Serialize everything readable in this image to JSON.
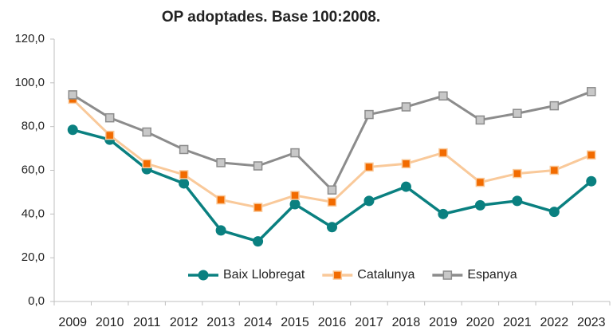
{
  "chart_data": {
    "type": "line",
    "title": "OP adoptades. Base 100:2008.",
    "categories": [
      "2009",
      "2010",
      "2011",
      "2012",
      "2013",
      "2014",
      "2015",
      "2016",
      "2017",
      "2018",
      "2019",
      "2020",
      "2021",
      "2022",
      "2023"
    ],
    "series": [
      {
        "name": "Baix Llobregat",
        "color": "#0a8080",
        "marker_color": "#0a8080",
        "marker": "circle",
        "values": [
          78.5,
          74,
          60.5,
          54,
          32.5,
          27.5,
          44.5,
          34,
          46,
          52.5,
          40,
          44,
          46,
          41,
          55
        ]
      },
      {
        "name": "Catalunya",
        "color": "#f9c99a",
        "marker_color": "#f26b00",
        "marker": "square",
        "values": [
          92.5,
          76,
          63,
          58,
          46.5,
          43,
          48.5,
          45.5,
          61.5,
          63,
          68,
          54.5,
          58.5,
          60,
          67
        ]
      },
      {
        "name": "Espanya",
        "color": "#8c8c8c",
        "marker_color": "#c8c8c8",
        "marker": "square",
        "values": [
          94.5,
          84,
          77.5,
          69.5,
          63.5,
          62,
          68,
          51,
          85.5,
          89,
          94,
          83,
          86,
          89.5,
          96
        ]
      }
    ],
    "ylim": [
      0,
      120
    ],
    "yticks": [
      {
        "value": 0,
        "label": "0,0"
      },
      {
        "value": 20,
        "label": "20,0"
      },
      {
        "value": 40,
        "label": "40,0"
      },
      {
        "value": 60,
        "label": "60,0"
      },
      {
        "value": 80,
        "label": "80,0"
      },
      {
        "value": 100,
        "label": "100,0"
      },
      {
        "value": 120,
        "label": "120,0"
      }
    ],
    "legend": "bottom"
  }
}
